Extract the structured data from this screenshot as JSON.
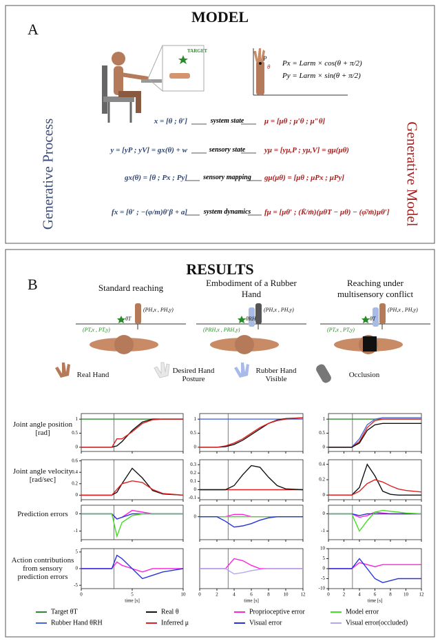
{
  "model": {
    "title": "MODEL",
    "label": "A",
    "target": "TARGET",
    "arm_equations": [
      "Px = Larm × cos(θ + π/2)",
      "Py = Larm × sin(θ + π/2)"
    ],
    "arm_labels": [
      "P",
      "θ"
    ],
    "left_title": "Generative Process",
    "right_title": "Generative Model",
    "rows": [
      {
        "process": "x = [θ ; θ′]",
        "relation": "system state",
        "model": "μ = [μθ ; μ′θ ; μ″θ]"
      },
      {
        "process": "y = [yP ; yV] = gx(θ) + w",
        "relation": "sensory state",
        "model": "yμ = [yμ,P ; yμ,V] = gμ(μθ)"
      },
      {
        "process": "gx(θ) = [θ ; Px ; Py]",
        "relation": "sensory mapping",
        "model": "gμ(μθ) = [μθ ; μPx ; μPy]"
      },
      {
        "process": "fx = [θ′ ; −(φ/m)θ′β + a]",
        "relation": "system dynamics",
        "model": "fμ = [μθ′ ; (K̄/m̄)(μθT − μθ) − (φ̄/m̄)μθ′]"
      }
    ]
  },
  "results": {
    "title": "RESULTS",
    "label": "B",
    "legend_icons": [
      "Real Hand",
      "Desired Hand Posture",
      "Rubber Hand Visible",
      "Occlusion"
    ],
    "row_labels": [
      "Joint angle position [rad]",
      "Joint angle velocity [rad/sec]",
      "Prediction errors",
      "Action contributions from sensory prediction errors"
    ],
    "xlabel": "time [s]",
    "columns": [
      {
        "title": "Standard reaching",
        "labels": [
          "(PH,x , PH,y)",
          "(PT,x , PT,y)",
          "θT"
        ],
        "x": [
          0,
          2,
          3,
          3.5,
          4,
          5,
          6,
          7,
          8,
          10
        ],
        "xlim": [
          0,
          10
        ],
        "xticks": [
          0,
          5,
          10
        ],
        "onset": 3.2,
        "plots": [
          {
            "ylim": [
              -0.15,
              1.2
            ],
            "yticks": [
              0,
              0.5,
              1
            ],
            "series": [
              {
                "color": "#2a8a2a",
                "values": [
                  1,
                  1,
                  1,
                  1,
                  1,
                  1,
                  1,
                  1,
                  1,
                  1
                ]
              },
              {
                "color": "#111111",
                "values": [
                  0,
                  0,
                  0,
                  0.05,
                  0.2,
                  0.6,
                  0.9,
                  1,
                  1,
                  1
                ]
              },
              {
                "color": "#e02020",
                "values": [
                  0,
                  0,
                  0,
                  0.3,
                  0.3,
                  0.55,
                  0.85,
                  0.98,
                  1,
                  1
                ]
              }
            ]
          },
          {
            "ylim": [
              -0.08,
              0.62
            ],
            "yticks": [
              0,
              0.2,
              0.4,
              0.6
            ],
            "series": [
              {
                "color": "#111111",
                "values": [
                  0,
                  0,
                  0,
                  0.05,
                  0.2,
                  0.47,
                  0.3,
                  0.08,
                  0.02,
                  0
                ]
              },
              {
                "color": "#e02020",
                "values": [
                  0,
                  0,
                  0,
                  0.1,
                  0.2,
                  0.25,
                  0.22,
                  0.1,
                  0.03,
                  0
                ]
              }
            ]
          },
          {
            "ylim": [
              -1.5,
              0.5
            ],
            "yticks": [
              -1,
              0
            ],
            "series": [
              {
                "color": "#ff22dd",
                "values": [
                  0,
                  0,
                  0,
                  -0.3,
                  -0.2,
                  0.2,
                  0.1,
                  0,
                  0,
                  0
                ]
              },
              {
                "color": "#2233dd",
                "values": [
                  0,
                  0,
                  0,
                  -0.3,
                  -0.2,
                  0,
                  0,
                  0,
                  0,
                  0
                ]
              },
              {
                "color": "#44dd22",
                "values": [
                  0,
                  0,
                  0,
                  -1.3,
                  -0.5,
                  -0.1,
                  0,
                  0,
                  0,
                  0
                ]
              }
            ]
          },
          {
            "ylim": [
              -6,
              6
            ],
            "yticks": [
              -5,
              0,
              5
            ],
            "series": [
              {
                "color": "#ff22dd",
                "values": [
                  0,
                  0,
                  0,
                  2,
                  1,
                  0,
                  -1,
                  0,
                  0,
                  0
                ]
              },
              {
                "color": "#2233dd",
                "values": [
                  0,
                  0,
                  0,
                  4,
                  3,
                  0,
                  -3,
                  -2,
                  -1,
                  0
                ]
              }
            ]
          }
        ]
      },
      {
        "title": "Embodiment of a Rubber Hand",
        "labels": [
          "(PH,x , PH,y)",
          "(PRH,x , PRH,y)",
          "θRH"
        ],
        "x": [
          0,
          2,
          3,
          4,
          5,
          6,
          7,
          8,
          9,
          10,
          12
        ],
        "xlim": [
          0,
          12
        ],
        "xticks": [
          0,
          2,
          4,
          6,
          8,
          10,
          12
        ],
        "onset": 3.3,
        "plots": [
          {
            "ylim": [
              -0.15,
              1.2
            ],
            "yticks": [
              0,
              0.5,
              1
            ],
            "series": [
              {
                "color": "#4466dd",
                "values": [
                  1,
                  1,
                  1,
                  1,
                  1,
                  1,
                  1,
                  1,
                  1,
                  1,
                  1
                ]
              },
              {
                "color": "#111111",
                "values": [
                  0,
                  0,
                  0.02,
                  0.1,
                  0.25,
                  0.45,
                  0.65,
                  0.85,
                  0.97,
                  1.02,
                  1.05
                ]
              },
              {
                "color": "#e02020",
                "values": [
                  0,
                  0,
                  0.05,
                  0.15,
                  0.3,
                  0.5,
                  0.7,
                  0.85,
                  0.95,
                  1,
                  1.05
                ]
              }
            ]
          },
          {
            "ylim": [
              -0.12,
              0.36
            ],
            "yticks": [
              -0.1,
              0,
              0.1,
              0.2,
              0.3
            ],
            "series": [
              {
                "color": "#e02020",
                "values": [
                  0,
                  0,
                  0,
                  0,
                  0,
                  0,
                  0,
                  0,
                  0,
                  0,
                  0
                ]
              },
              {
                "color": "#111111",
                "values": [
                  0,
                  0,
                  0,
                  0.05,
                  0.18,
                  0.29,
                  0.27,
                  0.15,
                  0.05,
                  0.01,
                  0
                ]
              }
            ]
          },
          {
            "ylim": [
              -1,
              0.5
            ],
            "yticks": [
              0
            ],
            "series": [
              {
                "color": "#ff22dd",
                "values": [
                  0,
                  0,
                  0,
                  0.1,
                  0.1,
                  0,
                  0,
                  0,
                  0,
                  0,
                  0
                ]
              },
              {
                "color": "#44dd22",
                "values": [
                  0,
                  0,
                  0,
                  0,
                  0,
                  0,
                  0,
                  0,
                  0,
                  0,
                  0
                ]
              },
              {
                "color": "#2233dd",
                "values": [
                  0,
                  0,
                  -0.2,
                  -0.45,
                  -0.4,
                  -0.3,
                  -0.15,
                  -0.05,
                  0,
                  0,
                  0
                ]
              }
            ]
          },
          {
            "ylim": [
              -3,
              3
            ],
            "yticks": [],
            "series": [
              {
                "color": "#ff22dd",
                "values": [
                  0,
                  0,
                  0,
                  1.5,
                  1.2,
                  0.5,
                  0,
                  0,
                  0,
                  0,
                  0
                ]
              },
              {
                "color": "#b0a8f0",
                "values": [
                  0,
                  0,
                  0,
                  -0.8,
                  -0.6,
                  -0.3,
                  -0.1,
                  0,
                  0,
                  0,
                  0
                ]
              }
            ]
          }
        ]
      },
      {
        "title": "Reaching under multisensory conflict",
        "labels": [
          "(PH,x , PH,y)",
          "(PT,x , PT,y)",
          "θT"
        ],
        "x": [
          0,
          2,
          3,
          4,
          5,
          6,
          7,
          8,
          9,
          10,
          12
        ],
        "xlim": [
          0,
          12
        ],
        "xticks": [
          0,
          2,
          4,
          6,
          8,
          10,
          12
        ],
        "onset": 3.1,
        "plots": [
          {
            "ylim": [
              -0.15,
              1.2
            ],
            "yticks": [
              0,
              0.5,
              1
            ],
            "series": [
              {
                "color": "#2a8a2a",
                "values": [
                  1,
                  1,
                  1,
                  1,
                  1,
                  1,
                  1,
                  1,
                  1,
                  1,
                  1
                ]
              },
              {
                "color": "#4466dd",
                "values": [
                  0,
                  0,
                  0,
                  0.3,
                  0.8,
                  1,
                  1.05,
                  1.05,
                  1.05,
                  1.05,
                  1.05
                ]
              },
              {
                "color": "#e02020",
                "values": [
                  0,
                  0,
                  0,
                  0.2,
                  0.7,
                  0.95,
                  1,
                  1,
                  1,
                  1,
                  1
                ]
              },
              {
                "color": "#111111",
                "values": [
                  0,
                  0,
                  0,
                  0.15,
                  0.6,
                  0.8,
                  0.85,
                  0.85,
                  0.85,
                  0.85,
                  0.85
                ]
              }
            ]
          },
          {
            "ylim": [
              -0.06,
              0.46
            ],
            "yticks": [
              0,
              0.2,
              0.4
            ],
            "series": [
              {
                "color": "#111111",
                "values": [
                  0,
                  0,
                  0,
                  0.1,
                  0.4,
                  0.25,
                  0.05,
                  0.01,
                  0,
                  0,
                  0
                ]
              },
              {
                "color": "#e02020",
                "values": [
                  0,
                  0,
                  0,
                  0.05,
                  0.15,
                  0.2,
                  0.17,
                  0.12,
                  0.08,
                  0.06,
                  0.04
                ]
              }
            ]
          },
          {
            "ylim": [
              -1.5,
              0.5
            ],
            "yticks": [
              -1,
              0
            ],
            "series": [
              {
                "color": "#ff22dd",
                "values": [
                  0,
                  0,
                  0,
                  -0.2,
                  -0.1,
                  0.1,
                  0.05,
                  0,
                  0,
                  0,
                  0
                ]
              },
              {
                "color": "#2233dd",
                "values": [
                  0,
                  0,
                  0,
                  -0.1,
                  0,
                  0,
                  0,
                  0,
                  0,
                  0,
                  0
                ]
              },
              {
                "color": "#44dd22",
                "values": [
                  0,
                  0,
                  0,
                  -1,
                  -0.4,
                  0.1,
                  0.2,
                  0.15,
                  0.1,
                  0.05,
                  0
                ]
              }
            ]
          },
          {
            "ylim": [
              -10,
              10
            ],
            "yticks": [
              -10,
              -5,
              0,
              5,
              10
            ],
            "series": [
              {
                "color": "#ff22dd",
                "values": [
                  0,
                  0,
                  0,
                  3,
                  2,
                  1,
                  2,
                  2,
                  2,
                  2,
                  2
                ]
              },
              {
                "color": "#2233dd",
                "values": [
                  0,
                  0,
                  0,
                  5,
                  0,
                  -5,
                  -7,
                  -6,
                  -5,
                  -5,
                  -5
                ]
              }
            ]
          }
        ]
      }
    ],
    "legend": [
      {
        "name": "Target θT",
        "color": "#2a8a2a"
      },
      {
        "name": "Rubber Hand θRH",
        "color": "#4466dd"
      },
      {
        "name": "Real θ",
        "color": "#111111"
      },
      {
        "name": "Inferred μ",
        "color": "#e02020"
      },
      {
        "name": "Proprioceptive error",
        "color": "#ff22dd"
      },
      {
        "name": "Visual error",
        "color": "#2233dd"
      },
      {
        "name": "Model error",
        "color": "#44dd22"
      },
      {
        "name": "Visual error(occluded)",
        "color": "#b0a8f0"
      }
    ]
  }
}
